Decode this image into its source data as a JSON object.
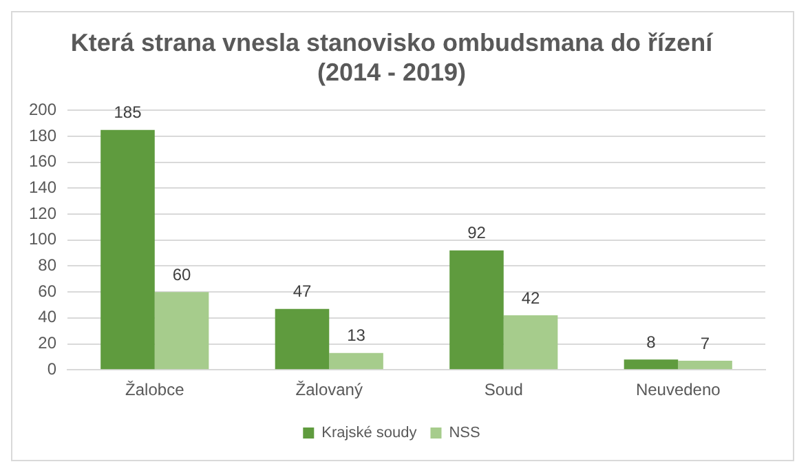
{
  "chart_data": {
    "type": "bar",
    "title": [
      "Která strana vnesla stanovisko ombudsmana do řízení",
      "(2014 - 2019)"
    ],
    "categories": [
      "Žalobce",
      "Žalovaný",
      "Soud",
      "Neuvedeno"
    ],
    "series": [
      {
        "name": "Krajské soudy",
        "color": "#5f9b3e",
        "values": [
          185,
          47,
          92,
          8
        ]
      },
      {
        "name": "NSS",
        "color": "#a6cc8c",
        "values": [
          60,
          13,
          42,
          7
        ]
      }
    ],
    "ylim": [
      0,
      200
    ],
    "yticks": [
      0,
      20,
      40,
      60,
      80,
      100,
      120,
      140,
      160,
      180,
      200
    ],
    "grid": "y",
    "legend": "bottom",
    "data_labels": true
  }
}
